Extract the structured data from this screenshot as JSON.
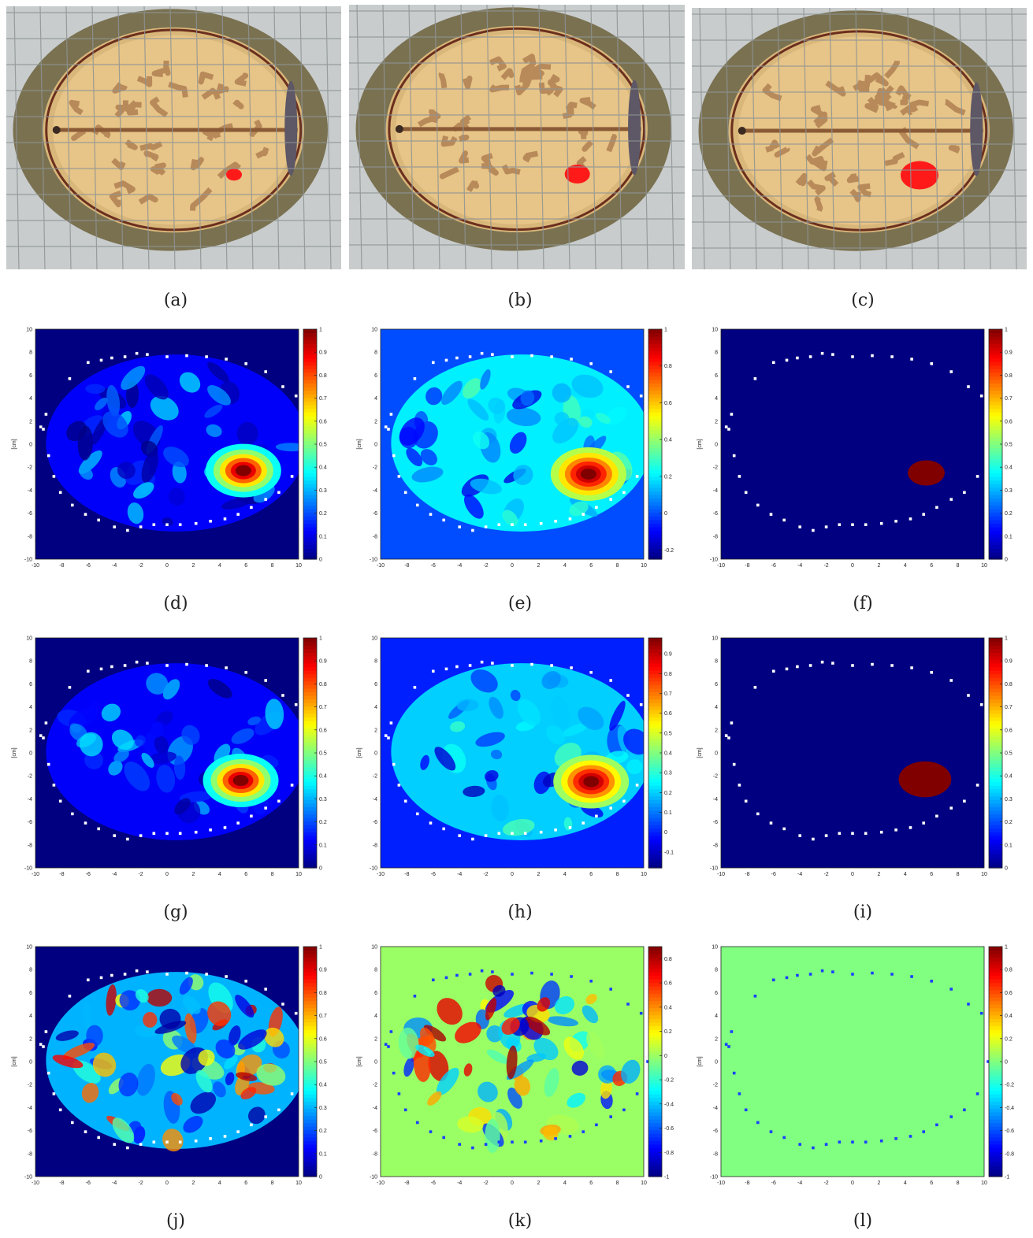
{
  "figure": {
    "captions": {
      "a": "(a)",
      "b": "(b)",
      "c": "(c)",
      "d": "(d)",
      "e": "(e)",
      "f": "(f)",
      "g": "(g)",
      "h": "(h)",
      "i": "(i)",
      "j": "(j)",
      "k": "(k)",
      "l": "(l)"
    },
    "axis_unit_label": "[cm]",
    "axis_ticks": [
      "-10",
      "-8",
      "-6",
      "-4",
      "-2",
      "0",
      "2",
      "4",
      "6",
      "8",
      "10"
    ],
    "colormap": "jet",
    "colors": {
      "jet_low": "#00008f",
      "jet_high": "#800000",
      "tumor_red": "#ff1a1a",
      "antenna_white": "#ffffff",
      "antenna_blue": "#1a3fff",
      "background_gray": "#c8cccd",
      "skull_olive": "#7a7151",
      "brain_tan": "#e7c487",
      "gyri_brown": "#b88a5a"
    }
  },
  "phantoms": [
    {
      "id": "a",
      "view": "axial head phantom",
      "tumor": "small"
    },
    {
      "id": "b",
      "view": "axial head phantom",
      "tumor": "medium"
    },
    {
      "id": "c",
      "view": "axial head phantom",
      "tumor": "large"
    }
  ],
  "chart_data": [
    {
      "id": "d",
      "type": "heatmap",
      "xlabel": "[cm]",
      "ylabel": "[cm]",
      "xlim": [
        -10,
        10
      ],
      "ylim": [
        -10,
        10
      ],
      "colorbar_ticks": [
        "0",
        "0.1",
        "0.2",
        "0.3",
        "0.4",
        "0.5",
        "0.6",
        "0.7",
        "0.8",
        "0.9",
        "1"
      ],
      "clim": [
        0,
        1
      ],
      "background": 0,
      "peak": {
        "x": 5.8,
        "y": -2.3,
        "value": 1
      }
    },
    {
      "id": "e",
      "type": "heatmap",
      "xlabel": "[cm]",
      "ylabel": "[cm]",
      "xlim": [
        -10,
        10
      ],
      "ylim": [
        -10,
        10
      ],
      "colorbar_ticks": [
        "-0.2",
        "0",
        "0.2",
        "0.4",
        "0.6",
        "0.8",
        "1"
      ],
      "clim": [
        -0.25,
        1
      ],
      "background": 0,
      "peak": {
        "x": 5.8,
        "y": -2.6,
        "value": 1
      }
    },
    {
      "id": "f",
      "type": "heatmap",
      "xlabel": "[cm]",
      "ylabel": "[cm]",
      "xlim": [
        -10,
        10
      ],
      "ylim": [
        -10,
        10
      ],
      "colorbar_ticks": [
        "0",
        "0.1",
        "0.2",
        "0.3",
        "0.4",
        "0.5",
        "0.6",
        "0.7",
        "0.8",
        "0.9",
        "1"
      ],
      "clim": [
        0,
        1
      ],
      "background": 0,
      "region": {
        "x": 5.6,
        "y": -2.5,
        "value": 1
      }
    },
    {
      "id": "g",
      "type": "heatmap",
      "xlabel": "[cm]",
      "ylabel": "[cm]",
      "xlim": [
        -10,
        10
      ],
      "ylim": [
        -10,
        10
      ],
      "colorbar_ticks": [
        "0",
        "0.1",
        "0.2",
        "0.3",
        "0.4",
        "0.5",
        "0.6",
        "0.7",
        "0.8",
        "0.9",
        "1"
      ],
      "clim": [
        0,
        1
      ],
      "background": 0,
      "peak": {
        "x": 5.6,
        "y": -2.4,
        "value": 1
      }
    },
    {
      "id": "h",
      "type": "heatmap",
      "xlabel": "[cm]",
      "ylabel": "[cm]",
      "xlim": [
        -10,
        10
      ],
      "ylim": [
        -10,
        10
      ],
      "colorbar_ticks": [
        "-0.1",
        "0",
        "0.1",
        "0.2",
        "0.3",
        "0.4",
        "0.5",
        "0.6",
        "0.7",
        "0.8",
        "0.9"
      ],
      "clim": [
        -0.18,
        0.98
      ],
      "background": 0,
      "peak": {
        "x": 6.0,
        "y": -2.5,
        "value": 0.98
      }
    },
    {
      "id": "i",
      "type": "heatmap",
      "xlabel": "[cm]",
      "ylabel": "[cm]",
      "xlim": [
        -10,
        10
      ],
      "ylim": [
        -10,
        10
      ],
      "colorbar_ticks": [
        "0",
        "0.1",
        "0.2",
        "0.3",
        "0.4",
        "0.5",
        "0.6",
        "0.7",
        "0.8",
        "0.9",
        "1"
      ],
      "clim": [
        0,
        1
      ],
      "background": 0,
      "region": {
        "x": 5.5,
        "y": -2.3,
        "value": 1
      }
    },
    {
      "id": "j",
      "type": "heatmap",
      "xlabel": "[cm]",
      "ylabel": "[cm]",
      "xlim": [
        -10,
        10
      ],
      "ylim": [
        -10,
        10
      ],
      "colorbar_ticks": [
        "0",
        "0.1",
        "0.2",
        "0.3",
        "0.4",
        "0.5",
        "0.6",
        "0.7",
        "0.8",
        "0.9",
        "1"
      ],
      "clim": [
        0,
        1
      ],
      "background": 0
    },
    {
      "id": "k",
      "type": "heatmap",
      "xlabel": "[cm]",
      "ylabel": "[cm]",
      "xlim": [
        -10,
        10
      ],
      "ylim": [
        -10,
        10
      ],
      "colorbar_ticks": [
        "-1",
        "-0.8",
        "-0.6",
        "-0.4",
        "-0.2",
        "0",
        "0.2",
        "0.4",
        "0.6",
        "0.8"
      ],
      "clim": [
        -1,
        0.9
      ],
      "background": 0
    },
    {
      "id": "l",
      "type": "heatmap",
      "xlabel": "[cm]",
      "ylabel": "[cm]",
      "xlim": [
        -10,
        10
      ],
      "ylim": [
        -10,
        10
      ],
      "colorbar_ticks": [
        "-1",
        "-0.8",
        "-0.6",
        "-0.4",
        "-0.2",
        "0",
        "0.2",
        "0.4",
        "0.6",
        "0.8",
        "1"
      ],
      "clim": [
        -1,
        1
      ],
      "background": 0
    }
  ],
  "antennas_cm": [
    [
      -9.2,
      2.6
    ],
    [
      -9.6,
      1.5
    ],
    [
      -9.4,
      1.3
    ],
    [
      -9,
      -1
    ],
    [
      -8.6,
      -2.8
    ],
    [
      -8.1,
      -4.2
    ],
    [
      -7.2,
      -5.3
    ],
    [
      -6.2,
      -6.1
    ],
    [
      -5.2,
      -6.6
    ],
    [
      -4,
      -7.2
    ],
    [
      -3,
      -7.5
    ],
    [
      -2,
      -7.2
    ],
    [
      -1,
      -7
    ],
    [
      0,
      -7
    ],
    [
      1,
      -7
    ],
    [
      2.2,
      -6.9
    ],
    [
      3.3,
      -6.7
    ],
    [
      4.4,
      -6.5
    ],
    [
      5.4,
      -6.1
    ],
    [
      6.4,
      -5.5
    ],
    [
      7.5,
      -4.8
    ],
    [
      8.5,
      -4.2
    ],
    [
      9.5,
      -2.8
    ],
    [
      10.3,
      0
    ],
    [
      9.8,
      4.2
    ],
    [
      8.8,
      5
    ],
    [
      7.5,
      6.3
    ],
    [
      6,
      7
    ],
    [
      4.5,
      7.4
    ],
    [
      3,
      7.6
    ],
    [
      1.5,
      7.7
    ],
    [
      0,
      7.6
    ],
    [
      -1.5,
      7.8
    ],
    [
      -2.3,
      7.9
    ],
    [
      -3.2,
      7.6
    ],
    [
      -4.2,
      7.5
    ],
    [
      -5,
      7.3
    ],
    [
      -6,
      7.1
    ],
    [
      -7.4,
      5.7
    ]
  ]
}
